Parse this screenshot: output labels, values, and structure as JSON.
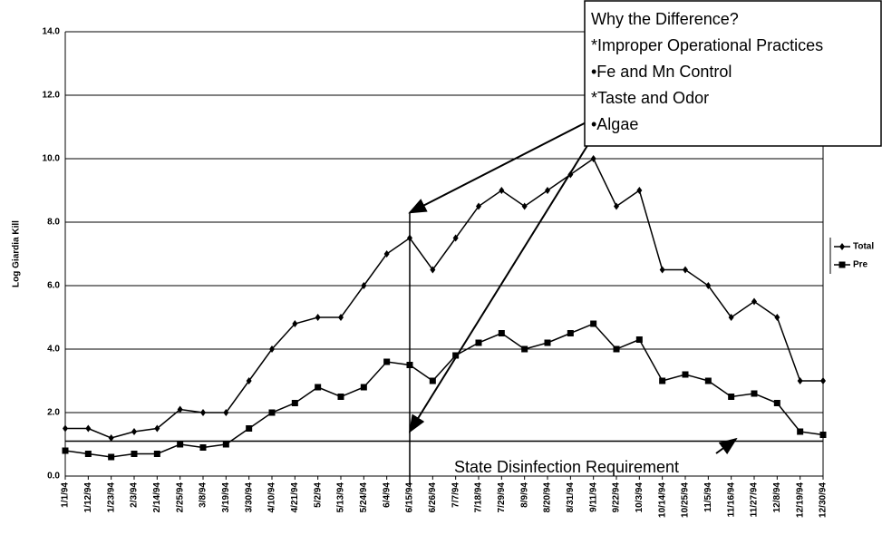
{
  "chart_data": {
    "type": "line",
    "y_label": "Log Giardia Kill",
    "categories": [
      "1/1/94",
      "1/12/94",
      "1/23/94",
      "2/3/94",
      "2/14/94",
      "2/25/94",
      "3/8/94",
      "3/19/94",
      "3/30/94",
      "4/10/94",
      "4/21/94",
      "5/2/94",
      "5/13/94",
      "5/24/94",
      "6/4/94",
      "6/15/94",
      "6/26/94",
      "7/7/94",
      "7/18/94",
      "7/29/94",
      "8/9/94",
      "8/20/94",
      "8/31/94",
      "9/11/94",
      "9/22/94",
      "10/3/94",
      "10/14/94",
      "10/25/94",
      "11/5/94",
      "11/16/94",
      "11/27/94",
      "12/8/94",
      "12/19/94",
      "12/30/94"
    ],
    "series": [
      {
        "name": "Total",
        "color": "#000000",
        "values": [
          1.5,
          1.5,
          1.2,
          1.4,
          1.5,
          2.1,
          2.0,
          2.0,
          3.0,
          4.0,
          4.8,
          5.0,
          5.0,
          6.0,
          7.0,
          7.5,
          6.5,
          7.5,
          8.5,
          9.0,
          8.5,
          9.0,
          9.5,
          10.0,
          8.5,
          9.0,
          6.5,
          6.5,
          6.0,
          5.0,
          5.5,
          5.0,
          3.0,
          3.0
        ]
      },
      {
        "name": "Pre",
        "color": "#000000",
        "values": [
          0.8,
          0.7,
          0.6,
          0.7,
          0.7,
          1.0,
          0.9,
          1.0,
          1.5,
          2.0,
          2.3,
          2.8,
          2.5,
          2.8,
          3.6,
          3.5,
          3.0,
          3.8,
          4.2,
          4.5,
          4.0,
          4.2,
          4.5,
          4.8,
          4.0,
          4.3,
          3.0,
          3.2,
          3.0,
          2.5,
          2.6,
          2.3,
          1.4,
          1.3
        ]
      }
    ],
    "ylim": [
      0,
      14
    ],
    "yticks": [
      {
        "value": 0,
        "label": "0.0"
      },
      {
        "value": 2,
        "label": "2.0"
      },
      {
        "value": 4,
        "label": "4.0"
      },
      {
        "value": 6,
        "label": "6.0"
      },
      {
        "value": 8,
        "label": "8.0"
      },
      {
        "value": 10,
        "label": "10.0"
      },
      {
        "value": 12,
        "label": "12.0"
      },
      {
        "value": 14,
        "label": "14.0"
      }
    ],
    "grid": true,
    "requirement": {
      "value": 1.1,
      "label": "State Disinfection Requirement"
    },
    "annotation": [
      "Why the Difference?",
      "*Improper Operational Practices",
      "•Fe and Mn Control",
      "*Taste and Odor",
      "•Algae"
    ]
  }
}
